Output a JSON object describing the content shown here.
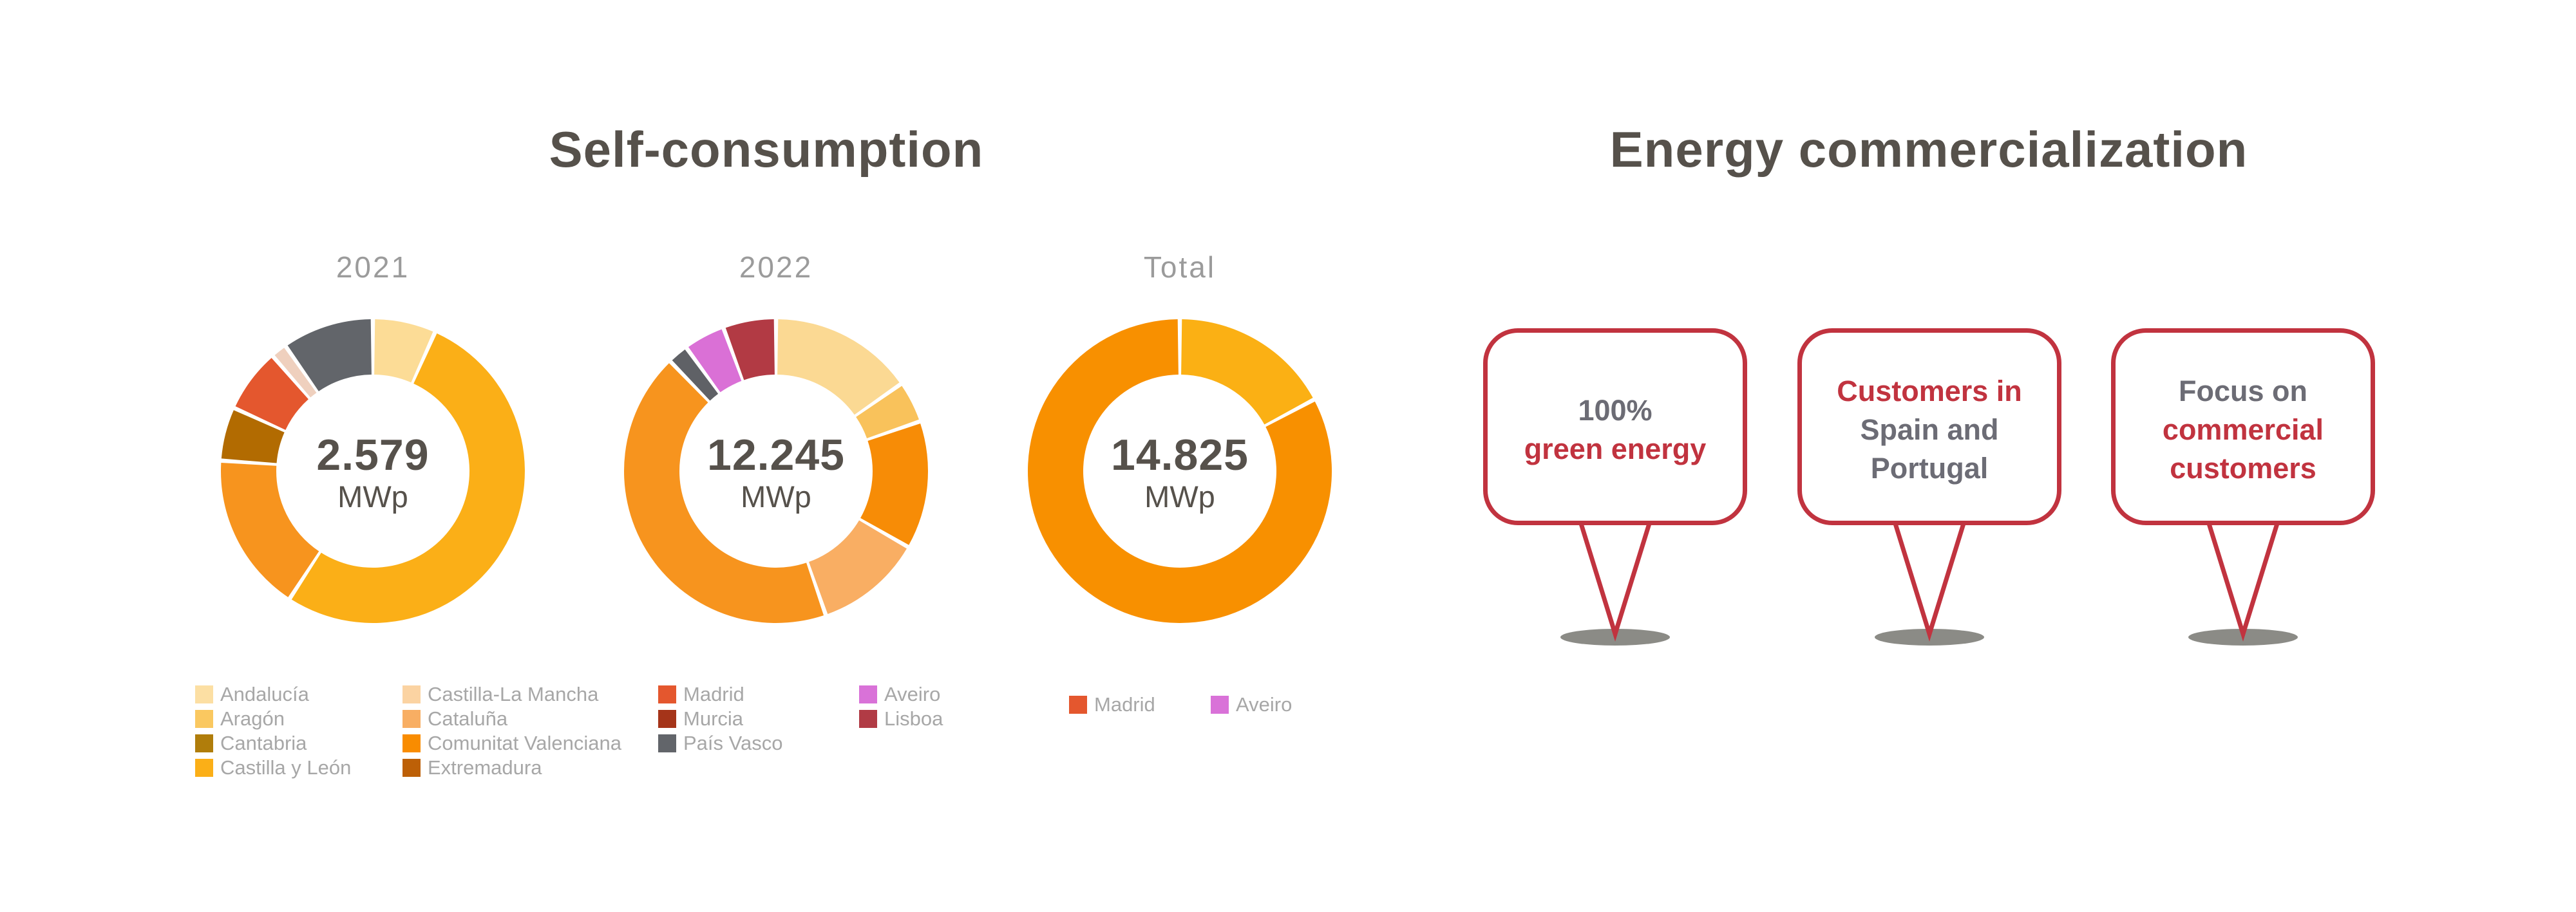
{
  "sections": {
    "self_consumption": {
      "title": "Self-consumption",
      "unit": "MWp",
      "legend_columns": [
        [
          {
            "label": "Andalucía",
            "color": "#FCDFA3"
          },
          {
            "label": "Aragón",
            "color": "#FAC860"
          },
          {
            "label": "Cantabria",
            "color": "#B07D0B"
          },
          {
            "label": "Castilla y León",
            "color": "#FBAF17"
          }
        ],
        [
          {
            "label": "Castilla-La Mancha",
            "color": "#FBD3A2"
          },
          {
            "label": "Cataluña",
            "color": "#F8AE63"
          },
          {
            "label": "Comunitat Valenciana",
            "color": "#F98C00"
          },
          {
            "label": "Extremadura",
            "color": "#BD6007"
          }
        ],
        [
          {
            "label": "Madrid",
            "color": "#E4572E"
          },
          {
            "label": "Murcia",
            "color": "#A53419"
          },
          {
            "label": "País Vasco",
            "color": "#62656A"
          }
        ],
        [
          {
            "label": "Aveiro",
            "color": "#D972D8"
          },
          {
            "label": "Lisboa",
            "color": "#B13B45"
          }
        ]
      ],
      "total_legend": [
        {
          "label": "Madrid",
          "color": "#E4572E"
        },
        {
          "label": "Aveiro",
          "color": "#D972D8"
        }
      ]
    },
    "energy_commercialization": {
      "title": "Energy commercialization",
      "callouts": [
        {
          "lines": [
            {
              "text": "100%",
              "color": "gray"
            },
            {
              "text": "green energy",
              "color": "red"
            }
          ]
        },
        {
          "lines": [
            {
              "text": "Customers in",
              "color": "red"
            },
            {
              "text": "Spain and",
              "color": "gray"
            },
            {
              "text": "Portugal",
              "color": "gray"
            }
          ]
        },
        {
          "lines": [
            {
              "text": "Focus on",
              "color": "gray"
            },
            {
              "text": "commercial",
              "color": "red"
            },
            {
              "text": "customers",
              "color": "red"
            }
          ]
        }
      ]
    }
  },
  "chart_data": [
    {
      "type": "pie",
      "subtype": "donut",
      "title": "2021",
      "center_value": "2.579",
      "center_unit": "MWp",
      "segments": [
        {
          "label": "Andalucía",
          "color": "#FCDC96",
          "percent": 6.7
        },
        {
          "label": "Castilla y León",
          "color": "#FBAF17",
          "percent": 52.5
        },
        {
          "label": "Comunitat Valenciana",
          "color": "#F7941E",
          "percent": 16.9
        },
        {
          "label": "Cantabria",
          "color": "#B26B01",
          "percent": 5.7
        },
        {
          "label": "Madrid",
          "color": "#E4572E",
          "percent": 6.8
        },
        {
          "label": "Castilla-La Mancha",
          "color": "#EFD0BE",
          "percent": 1.7
        },
        {
          "label": "País Vasco",
          "color": "#62656A",
          "percent": 9.7
        }
      ]
    },
    {
      "type": "pie",
      "subtype": "donut",
      "title": "2022",
      "center_value": "12.245",
      "center_unit": "MWp",
      "segments": [
        {
          "label": "Andalucía",
          "color": "#FBD993",
          "percent": 15.3
        },
        {
          "label": "Aragón",
          "color": "#F9C25B",
          "percent": 4.4
        },
        {
          "label": "Comunitat Valenciana",
          "color": "#F78C06",
          "percent": 13.6
        },
        {
          "label": "Cataluña",
          "color": "#F9AE63",
          "percent": 11.4
        },
        {
          "label": "Madrid",
          "color": "#F7941E",
          "percent": 43.1
        },
        {
          "label": "País Vasco",
          "color": "#5F6166",
          "percent": 2.2
        },
        {
          "label": "Aveiro",
          "color": "#DA70D6",
          "percent": 4.4
        },
        {
          "label": "Lisboa",
          "color": "#B23A44",
          "percent": 5.6
        }
      ]
    },
    {
      "type": "pie",
      "subtype": "donut",
      "title": "Total",
      "center_value": "14.825",
      "center_unit": "MWp",
      "segments": [
        {
          "label": "",
          "color": "#FBB014",
          "percent": 17.2
        },
        {
          "label": "Madrid",
          "color": "#F89000",
          "percent": 82.8
        }
      ]
    }
  ],
  "colors": {
    "title_text": "#56514B",
    "muted_label": "#9B9B9B",
    "legend_text": "#A7A7A7",
    "center_value_text": "#56514B",
    "callout_border": "#C1333F",
    "callout_red_text": "#C1333F",
    "callout_gray_text": "#6C6C75",
    "shadow_gray": "#8B8B86",
    "background": "#FFFFFF"
  }
}
